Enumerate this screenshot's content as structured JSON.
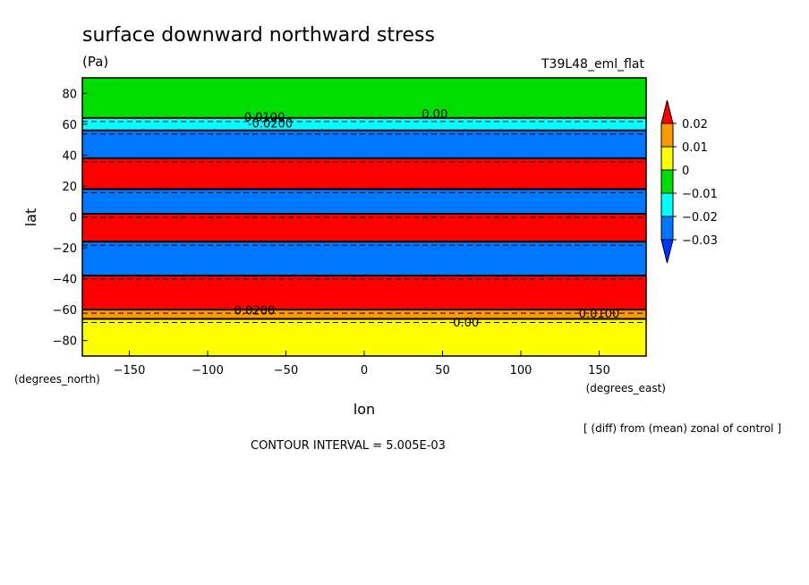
{
  "chart_data": {
    "type": "heatmap",
    "title": "surface downward northward stress",
    "units": "(Pa)",
    "experiment": "T39L48_eml_flat",
    "xlabel": "lon",
    "ylabel": "lat",
    "x_units": "(degrees_east)",
    "y_units": "(degrees_north)",
    "xlim": [
      -180,
      180
    ],
    "ylim": [
      -90,
      90
    ],
    "x_ticks": [
      -150,
      -100,
      -50,
      0,
      50,
      100,
      150
    ],
    "y_ticks": [
      -80,
      -60,
      -40,
      -20,
      0,
      20,
      40,
      60,
      80
    ],
    "colorbar": {
      "labels": [
        "0.02",
        "0.01",
        "0",
        "-0.01",
        "-0.02",
        "-0.03"
      ],
      "levels": [
        0.02,
        0.01,
        0,
        -0.01,
        -0.02,
        -0.03
      ],
      "colors": [
        "#ff0000",
        "#ff9900",
        "#ffff00",
        "#00dd00",
        "#00ffff",
        "#0077ff",
        "#0033ff"
      ]
    },
    "bands": [
      {
        "lat_from": 64,
        "lat_to": 90,
        "color": "#00dd00"
      },
      {
        "lat_from": 56,
        "lat_to": 64,
        "color": "#00ffff"
      },
      {
        "lat_from": 38,
        "lat_to": 56,
        "color": "#0077ff"
      },
      {
        "lat_from": 18,
        "lat_to": 38,
        "color": "#ff0000"
      },
      {
        "lat_from": 2,
        "lat_to": 18,
        "color": "#0077ff"
      },
      {
        "lat_from": -16,
        "lat_to": 2,
        "color": "#ff0000"
      },
      {
        "lat_from": -38,
        "lat_to": -16,
        "color": "#0077ff"
      },
      {
        "lat_from": -60,
        "lat_to": -38,
        "color": "#ff0000"
      },
      {
        "lat_from": -66,
        "lat_to": -60,
        "color": "#ff9900"
      },
      {
        "lat_from": -90,
        "lat_to": -66,
        "color": "#ffff00"
      }
    ],
    "contour_labels": [
      {
        "text": "0.00",
        "lon": 45,
        "lat": 64
      },
      {
        "text": "-0.0100",
        "lon": -65,
        "lat": 62
      },
      {
        "text": "-0.0200",
        "lon": -60,
        "lat": 58
      },
      {
        "text": "0.0100",
        "lon": 150,
        "lat": -65
      },
      {
        "text": "0.0200",
        "lon": -70,
        "lat": -63
      },
      {
        "text": "0.00",
        "lon": 65,
        "lat": -71
      }
    ],
    "footer_left": "CONTOUR INTERVAL = 5.005E-03",
    "footer_right": "[ (diff) from (mean) zonal of control ]"
  }
}
